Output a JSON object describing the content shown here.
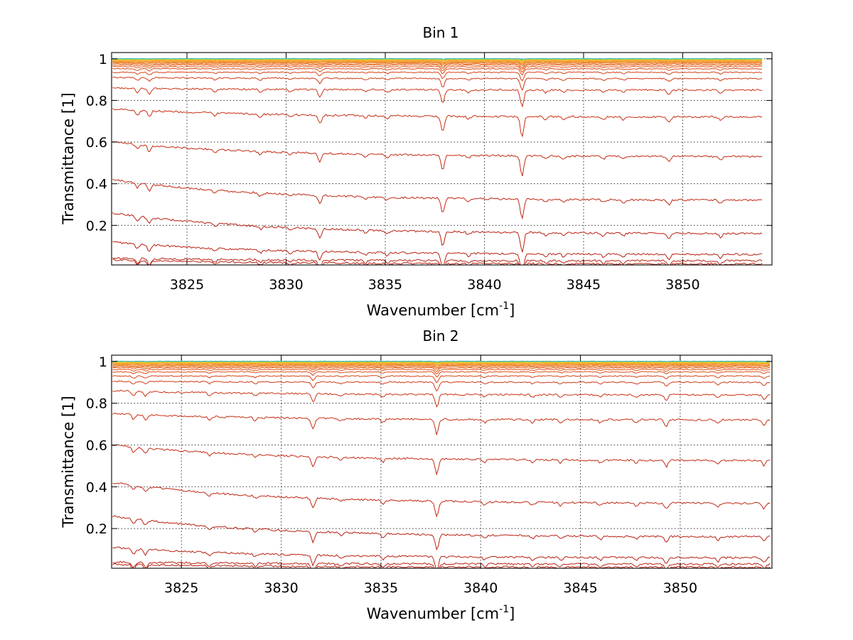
{
  "chart_data": [
    {
      "type": "line",
      "title": "Bin 1",
      "xlabel": "Wavenumber [cm",
      "xlabel_sup": "-1",
      "xlabel_tail": "]",
      "ylabel": "Transmittance [1]",
      "xlim": [
        3821.2,
        3854.5
      ],
      "ylim": [
        0.01,
        1.03
      ],
      "xticks": [
        3825,
        3830,
        3835,
        3840,
        3845,
        3850
      ],
      "xtick_labels": [
        "3825",
        "3830",
        "3835",
        "3840",
        "3845",
        "3850"
      ],
      "yticks": [
        0.2,
        0.4,
        0.6,
        0.8,
        1
      ],
      "ytick_labels": [
        "0.2",
        "0.4",
        "0.6",
        "0.8",
        "1"
      ],
      "grid": true,
      "x_end": 3854.0,
      "series_levels": [
        {
          "start": 0.035,
          "end": 0.015,
          "color": "#b81f10"
        },
        {
          "start": 0.043,
          "end": 0.03,
          "color": "#b81f10"
        },
        {
          "start": 0.12,
          "end": 0.06,
          "color": "#b81f10"
        },
        {
          "start": 0.26,
          "end": 0.16,
          "color": "#b81f10"
        },
        {
          "start": 0.42,
          "end": 0.32,
          "color": "#c02612"
        },
        {
          "start": 0.6,
          "end": 0.53,
          "color": "#c42a12"
        },
        {
          "start": 0.76,
          "end": 0.72,
          "color": "#c82e14"
        },
        {
          "start": 0.86,
          "end": 0.85,
          "color": "#cc3314"
        },
        {
          "start": 0.91,
          "end": 0.905,
          "color": "#d03a15"
        },
        {
          "start": 0.935,
          "end": 0.935,
          "color": "#d44216"
        },
        {
          "start": 0.952,
          "end": 0.952,
          "color": "#d94a17"
        },
        {
          "start": 0.962,
          "end": 0.962,
          "color": "#de5518"
        },
        {
          "start": 0.97,
          "end": 0.97,
          "color": "#e2601a"
        },
        {
          "start": 0.976,
          "end": 0.976,
          "color": "#e66b1b"
        },
        {
          "start": 0.981,
          "end": 0.981,
          "color": "#ea771d"
        },
        {
          "start": 0.985,
          "end": 0.985,
          "color": "#ee841f"
        },
        {
          "start": 0.988,
          "end": 0.988,
          "color": "#f29122"
        },
        {
          "start": 0.991,
          "end": 0.991,
          "color": "#f59e26"
        },
        {
          "start": 0.993,
          "end": 0.993,
          "color": "#f7ac2a"
        },
        {
          "start": 0.995,
          "end": 0.995,
          "color": "#f5bb2d"
        },
        {
          "start": 0.997,
          "end": 0.997,
          "color": "#e6c930"
        },
        {
          "start": 0.998,
          "end": 0.998,
          "color": "#c8d035"
        },
        {
          "start": 0.999,
          "end": 0.999,
          "color": "#a8d43c"
        },
        {
          "start": 1.0,
          "end": 1.0,
          "color": "#6fcd67"
        },
        {
          "start": 1.001,
          "end": 1.001,
          "color": "#3fb8c9"
        }
      ],
      "absorption_lines": [
        {
          "x": 3822.5,
          "depth": 0.02
        },
        {
          "x": 3823.1,
          "depth": 0.025
        },
        {
          "x": 3826.4,
          "depth": 0.012
        },
        {
          "x": 3828.7,
          "depth": 0.012
        },
        {
          "x": 3830.2,
          "depth": 0.01
        },
        {
          "x": 3831.7,
          "depth": 0.035
        },
        {
          "x": 3834.0,
          "depth": 0.01
        },
        {
          "x": 3835.1,
          "depth": 0.012
        },
        {
          "x": 3837.9,
          "depth": 0.06
        },
        {
          "x": 3839.2,
          "depth": 0.012
        },
        {
          "x": 3841.9,
          "depth": 0.08
        },
        {
          "x": 3843.1,
          "depth": 0.012
        },
        {
          "x": 3844.0,
          "depth": 0.012
        },
        {
          "x": 3846.0,
          "depth": 0.012
        },
        {
          "x": 3847.0,
          "depth": 0.012
        },
        {
          "x": 3849.3,
          "depth": 0.02
        },
        {
          "x": 3851.9,
          "depth": 0.015
        }
      ]
    },
    {
      "type": "line",
      "title": "Bin 2",
      "xlabel": "Wavenumber [cm",
      "xlabel_sup": "-1",
      "xlabel_tail": "]",
      "ylabel": "Transmittance [1]",
      "xlim": [
        3821.5,
        3854.6
      ],
      "ylim": [
        0.01,
        1.03
      ],
      "xticks": [
        3825,
        3830,
        3835,
        3840,
        3845,
        3850
      ],
      "xtick_labels": [
        "3825",
        "3830",
        "3835",
        "3840",
        "3845",
        "3850"
      ],
      "yticks": [
        0.2,
        0.4,
        0.6,
        0.8,
        1
      ],
      "ytick_labels": [
        "0.2",
        "0.4",
        "0.6",
        "0.8",
        "1"
      ],
      "grid": true,
      "x_end": 3854.5,
      "series_levels": [
        {
          "start": 0.03,
          "end": 0.015,
          "color": "#b81f10"
        },
        {
          "start": 0.04,
          "end": 0.03,
          "color": "#b81f10"
        },
        {
          "start": 0.11,
          "end": 0.06,
          "color": "#b81f10"
        },
        {
          "start": 0.26,
          "end": 0.16,
          "color": "#b81f10"
        },
        {
          "start": 0.42,
          "end": 0.32,
          "color": "#c02612"
        },
        {
          "start": 0.6,
          "end": 0.525,
          "color": "#c42a12"
        },
        {
          "start": 0.75,
          "end": 0.72,
          "color": "#c82e14"
        },
        {
          "start": 0.86,
          "end": 0.84,
          "color": "#cc3314"
        },
        {
          "start": 0.905,
          "end": 0.9,
          "color": "#d03a15"
        },
        {
          "start": 0.93,
          "end": 0.93,
          "color": "#d44216"
        },
        {
          "start": 0.95,
          "end": 0.95,
          "color": "#d94a17"
        },
        {
          "start": 0.961,
          "end": 0.961,
          "color": "#de5518"
        },
        {
          "start": 0.969,
          "end": 0.969,
          "color": "#e2601a"
        },
        {
          "start": 0.975,
          "end": 0.975,
          "color": "#e66b1b"
        },
        {
          "start": 0.98,
          "end": 0.98,
          "color": "#ea771d"
        },
        {
          "start": 0.984,
          "end": 0.984,
          "color": "#ee841f"
        },
        {
          "start": 0.988,
          "end": 0.988,
          "color": "#f29122"
        },
        {
          "start": 0.991,
          "end": 0.991,
          "color": "#f59e26"
        },
        {
          "start": 0.993,
          "end": 0.993,
          "color": "#f7ac2a"
        },
        {
          "start": 0.995,
          "end": 0.995,
          "color": "#f5bb2d"
        },
        {
          "start": 0.997,
          "end": 0.997,
          "color": "#e6c930"
        },
        {
          "start": 0.998,
          "end": 0.998,
          "color": "#c8d035"
        },
        {
          "start": 0.999,
          "end": 0.999,
          "color": "#a8d43c"
        },
        {
          "start": 1.0,
          "end": 1.0,
          "color": "#6fcd67"
        },
        {
          "start": 1.001,
          "end": 1.001,
          "color": "#3fb8c9"
        }
      ],
      "absorption_lines": [
        {
          "x": 3822.6,
          "depth": 0.02
        },
        {
          "x": 3823.2,
          "depth": 0.02
        },
        {
          "x": 3826.4,
          "depth": 0.012
        },
        {
          "x": 3828.7,
          "depth": 0.012
        },
        {
          "x": 3831.6,
          "depth": 0.04
        },
        {
          "x": 3833.0,
          "depth": 0.01
        },
        {
          "x": 3835.1,
          "depth": 0.015
        },
        {
          "x": 3837.8,
          "depth": 0.06
        },
        {
          "x": 3840.2,
          "depth": 0.012
        },
        {
          "x": 3842.6,
          "depth": 0.012
        },
        {
          "x": 3844.0,
          "depth": 0.012
        },
        {
          "x": 3846.0,
          "depth": 0.012
        },
        {
          "x": 3847.8,
          "depth": 0.012
        },
        {
          "x": 3849.3,
          "depth": 0.025
        },
        {
          "x": 3851.9,
          "depth": 0.015
        },
        {
          "x": 3854.2,
          "depth": 0.02
        }
      ]
    }
  ]
}
